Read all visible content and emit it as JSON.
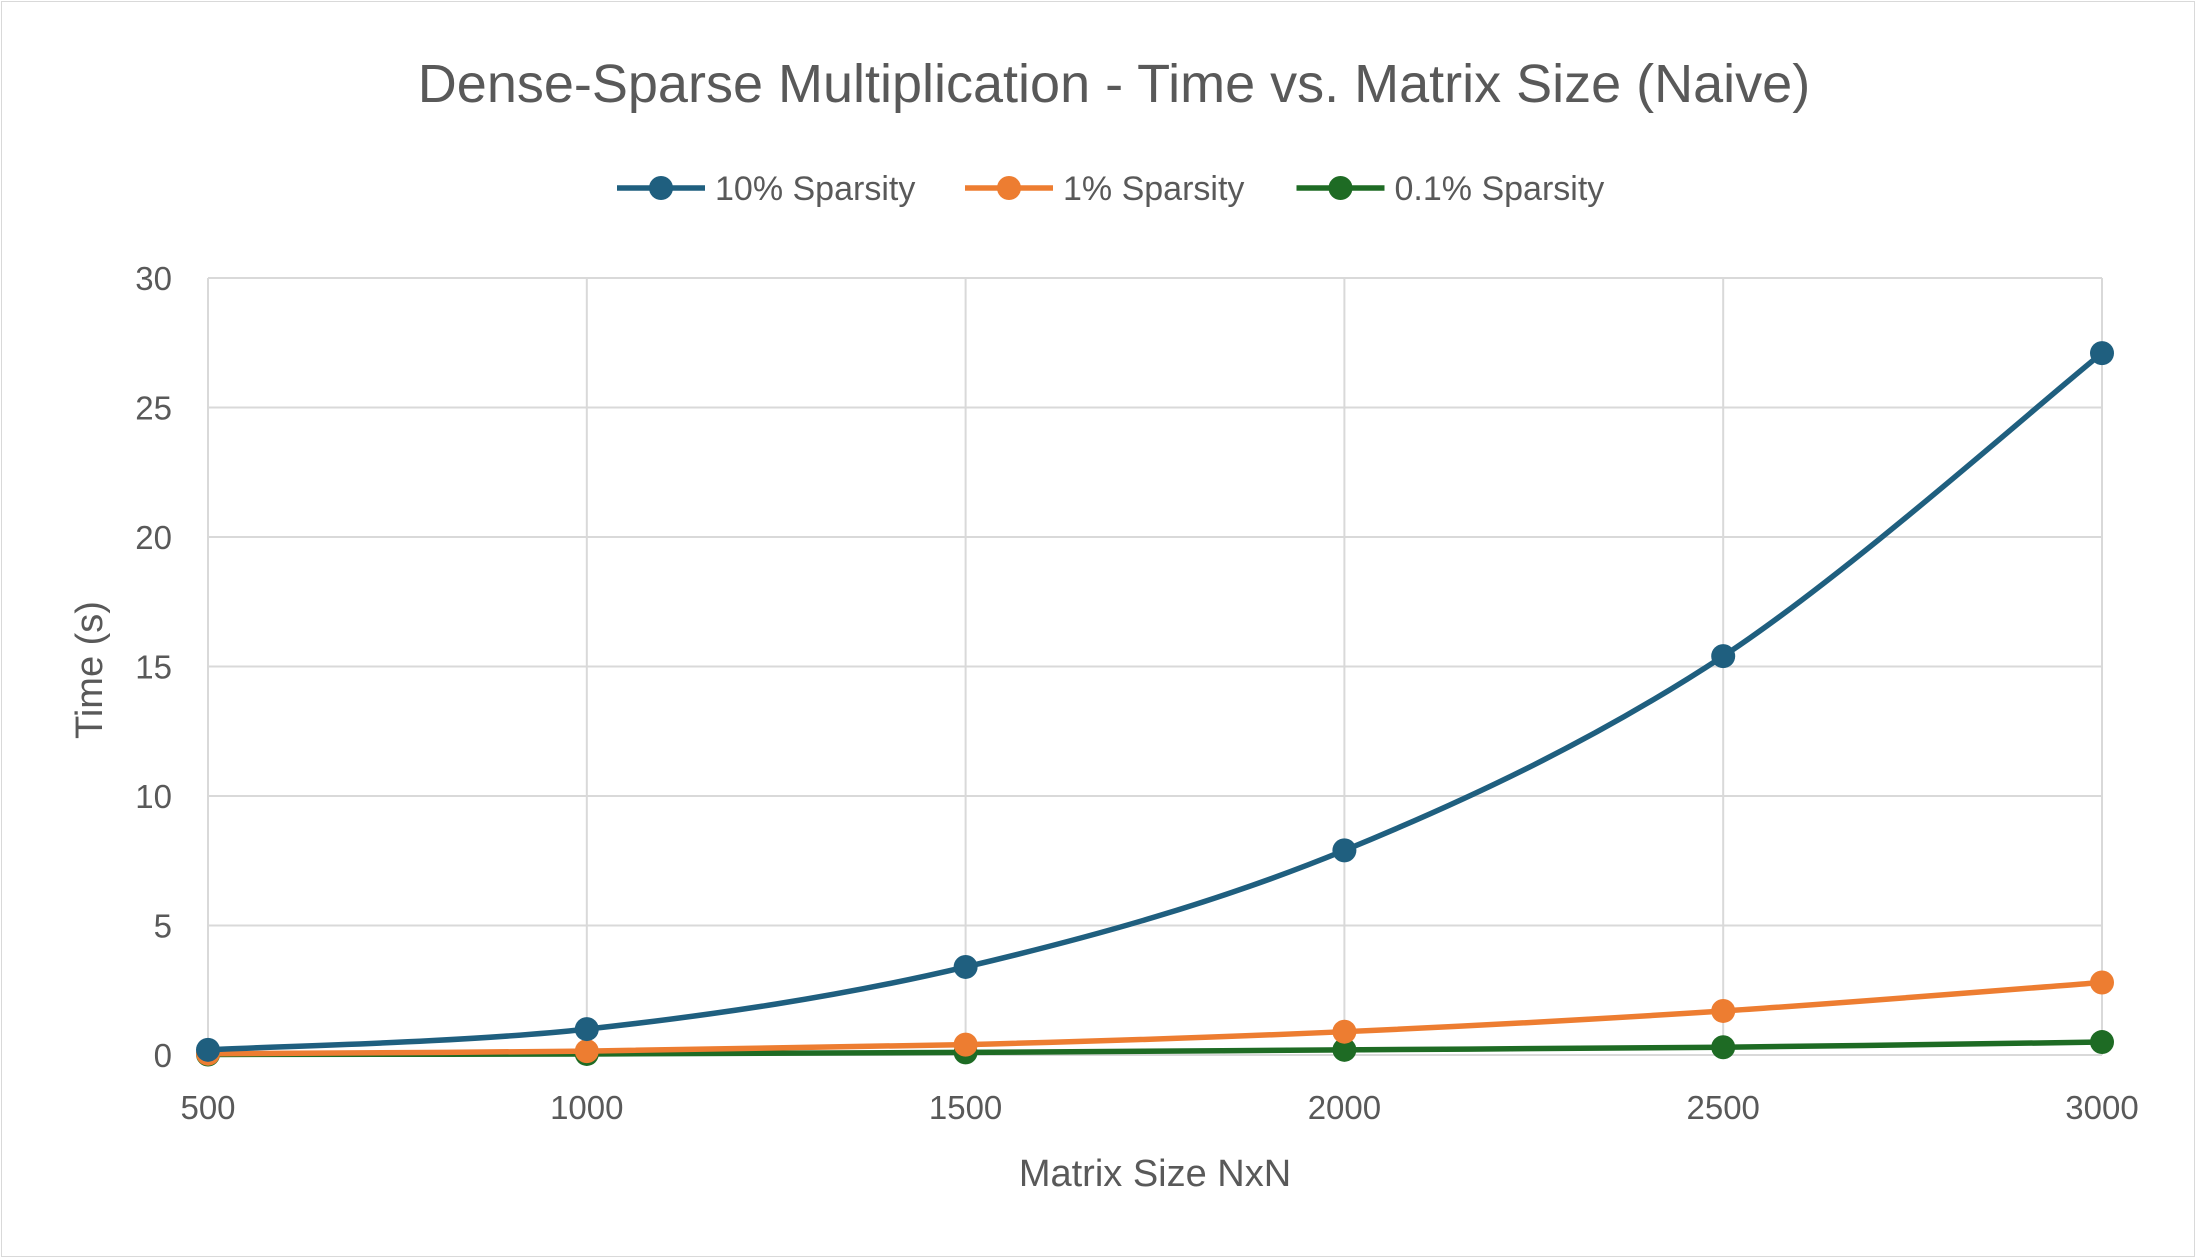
{
  "chart_data": {
    "type": "line",
    "title": "Dense-Sparse Multiplication - Time vs. Matrix Size (Naive)",
    "xlabel": "Matrix Size NxN",
    "ylabel": "Time (s)",
    "x": [
      500,
      1000,
      1500,
      2000,
      2500,
      3000
    ],
    "xlim": [
      500,
      3000
    ],
    "ylim": [
      0,
      30
    ],
    "yticks": [
      0,
      5,
      10,
      15,
      20,
      25,
      30
    ],
    "grid": true,
    "legend_position": "top",
    "smooth_lines": true,
    "series": [
      {
        "name": "10% Sparsity",
        "color": "#1f5f7f",
        "values": [
          0.2,
          1.0,
          3.4,
          7.9,
          15.4,
          27.1
        ]
      },
      {
        "name": "1% Sparsity",
        "color": "#ed7d31",
        "values": [
          0.05,
          0.15,
          0.4,
          0.9,
          1.7,
          2.8
        ]
      },
      {
        "name": "0.1% Sparsity",
        "color": "#1e6b24",
        "values": [
          0.02,
          0.04,
          0.1,
          0.2,
          0.3,
          0.5
        ]
      }
    ]
  }
}
